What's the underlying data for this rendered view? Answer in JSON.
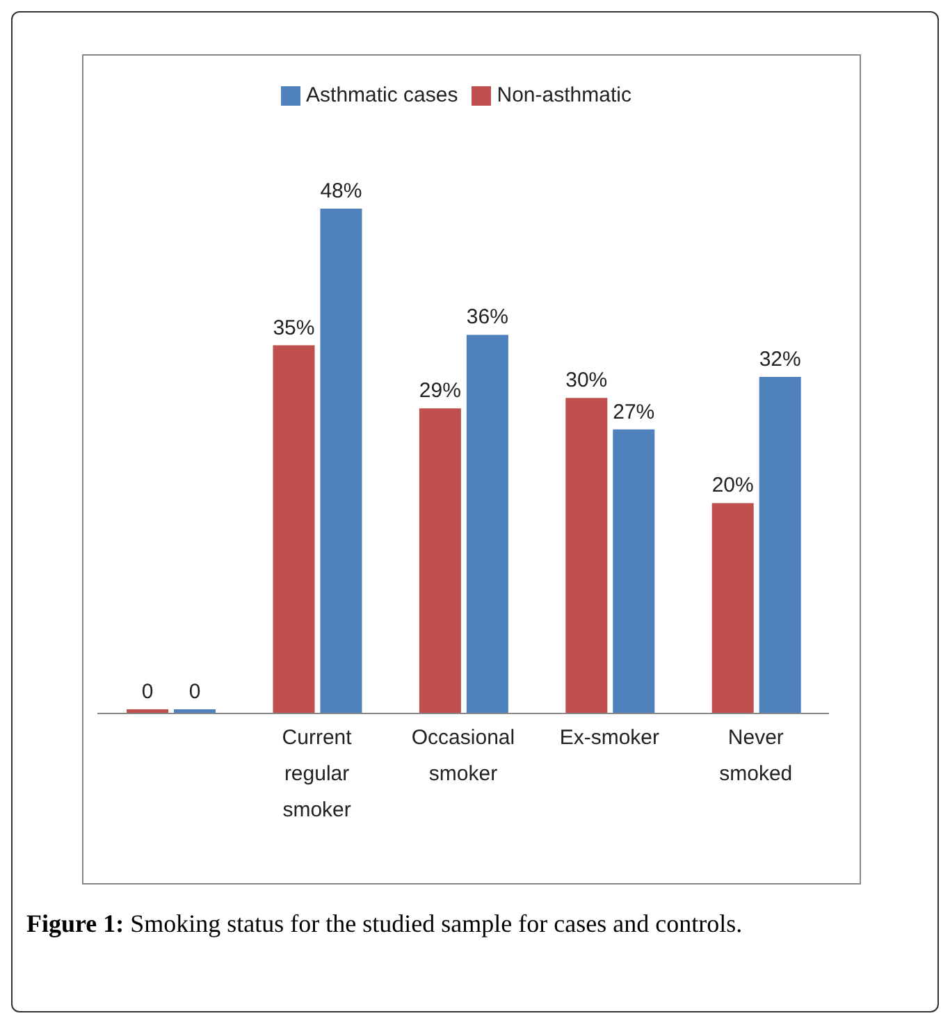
{
  "chart_data": {
    "type": "bar",
    "categories": [
      null,
      "Current regular smoker",
      "Occasional smoker",
      "Ex-smoker",
      "Never smoked"
    ],
    "series": [
      {
        "name": "Non-asthmatic",
        "color": "#c0504d",
        "values": [
          0,
          35,
          29,
          30,
          20
        ],
        "value_labels": [
          "0",
          "35%",
          "29%",
          "30%",
          "20%"
        ]
      },
      {
        "name": "Asthmatic cases",
        "color": "#4f81bd",
        "values": [
          0,
          48,
          36,
          27,
          32
        ],
        "value_labels": [
          "0",
          "48%",
          "36%",
          "27%",
          "32%"
        ]
      }
    ],
    "legend": "top",
    "tick_labels": "x",
    "annotations": [
      "Figure 1: Smoking status for the studied sample for cases and controls."
    ]
  }
}
